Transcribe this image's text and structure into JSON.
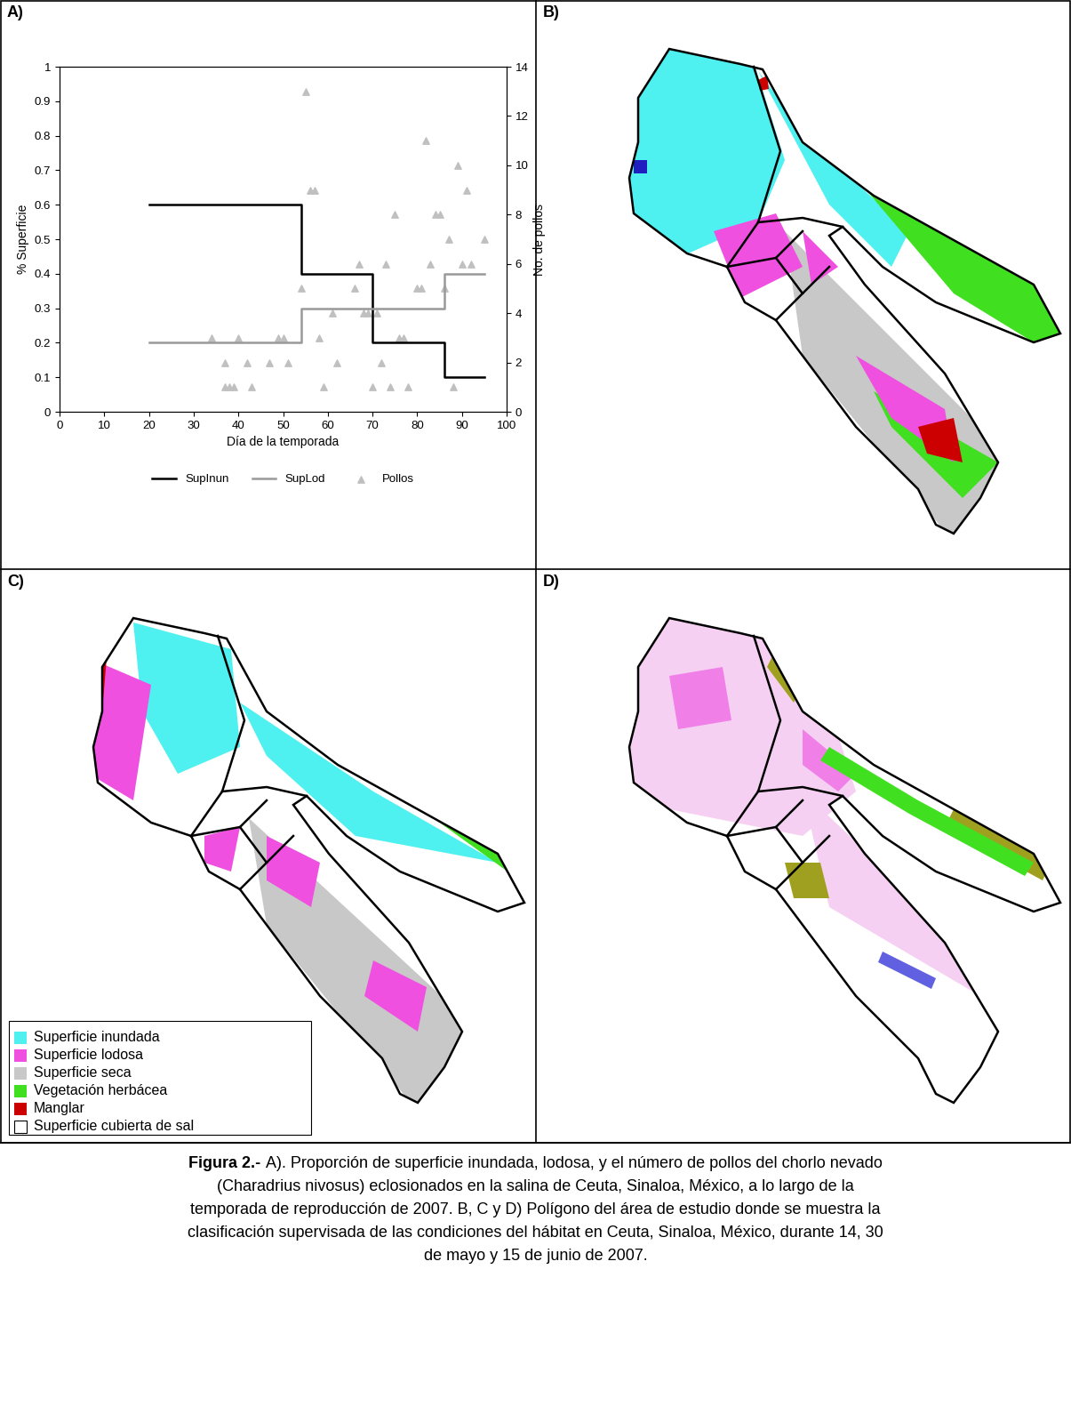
{
  "chart_data": {
    "type": "line",
    "xlabel": "Día de la temporada",
    "ylabel": "% Superficie",
    "y2label": "No. de pollos",
    "xlim": [
      0,
      100
    ],
    "xticks": [
      0,
      10,
      20,
      30,
      40,
      50,
      60,
      70,
      80,
      90,
      100
    ],
    "ylim": [
      0,
      1
    ],
    "yticks": [
      0,
      0.1,
      0.2,
      0.3,
      0.4,
      0.5,
      0.6,
      0.7,
      0.8,
      0.9,
      1
    ],
    "y2lim": [
      0,
      14
    ],
    "y2ticks": [
      0,
      2,
      4,
      6,
      8,
      10,
      12,
      14
    ],
    "legend": "bottom",
    "series": [
      {
        "name": "SupInun",
        "type": "step",
        "color": "#000000",
        "x": [
          20,
          54,
          70,
          86,
          95
        ],
        "values": [
          0.6,
          0.4,
          0.2,
          0.1,
          0.1
        ]
      },
      {
        "name": "SupLod",
        "type": "step",
        "color": "#999999",
        "x": [
          20,
          54,
          86,
          95
        ],
        "values": [
          0.2,
          0.3,
          0.4,
          0.4
        ]
      },
      {
        "name": "Pollos",
        "type": "scatter",
        "marker": "triangle",
        "color": "#c0c0c0",
        "axis": "y2",
        "x": [
          34,
          37,
          37,
          38,
          39,
          40,
          42,
          43,
          47,
          49,
          50,
          51,
          54,
          55,
          56,
          57,
          58,
          59,
          61,
          62,
          66,
          67,
          68,
          69,
          70,
          71,
          72,
          73,
          74,
          75,
          76,
          77,
          78,
          80,
          81,
          82,
          83,
          84,
          85,
          86,
          87,
          88,
          89,
          90,
          91,
          92,
          95
        ],
        "values": [
          3,
          1,
          2,
          1,
          1,
          3,
          2,
          1,
          2,
          3,
          3,
          2,
          5,
          13,
          9,
          9,
          3,
          1,
          4,
          2,
          5,
          6,
          4,
          4,
          1,
          4,
          2,
          6,
          1,
          8,
          3,
          3,
          1,
          5,
          5,
          11,
          6,
          8,
          8,
          5,
          7,
          1,
          10,
          6,
          9,
          6,
          7
        ]
      }
    ]
  },
  "panels": {
    "labels": [
      "A)",
      "B)",
      "C)",
      "D)"
    ]
  },
  "map_legend": {
    "items": [
      {
        "name": "Superficie inundada",
        "color": "#4ff0f0"
      },
      {
        "name": "Superficie lodosa",
        "color": "#f050e0"
      },
      {
        "name": "Superficie seca",
        "color": "#c8c8c8"
      },
      {
        "name": "Vegetación herbácea",
        "color": "#40e020"
      },
      {
        "name": "Manglar",
        "color": "#cc0000"
      },
      {
        "name": "Superficie cubierta de sal",
        "color": "#ffffff"
      }
    ]
  },
  "caption": {
    "label": "Figura 2.-",
    "lines": [
      "A). Proporción de superficie inundada, lodosa, y el número de pollos del chorlo nevado",
      "(Charadrius nivosus) eclosionados en la salina de Ceuta, Sinaloa, México, a lo largo de la",
      "temporada de reproducción de 2007. B, C y D) Polígono del área de estudio donde se muestra la",
      "clasificación supervisada de las condiciones del hábitat en Ceuta, Sinaloa, México, durante 14, 30",
      "de mayo y 15 de junio de 2007."
    ]
  }
}
